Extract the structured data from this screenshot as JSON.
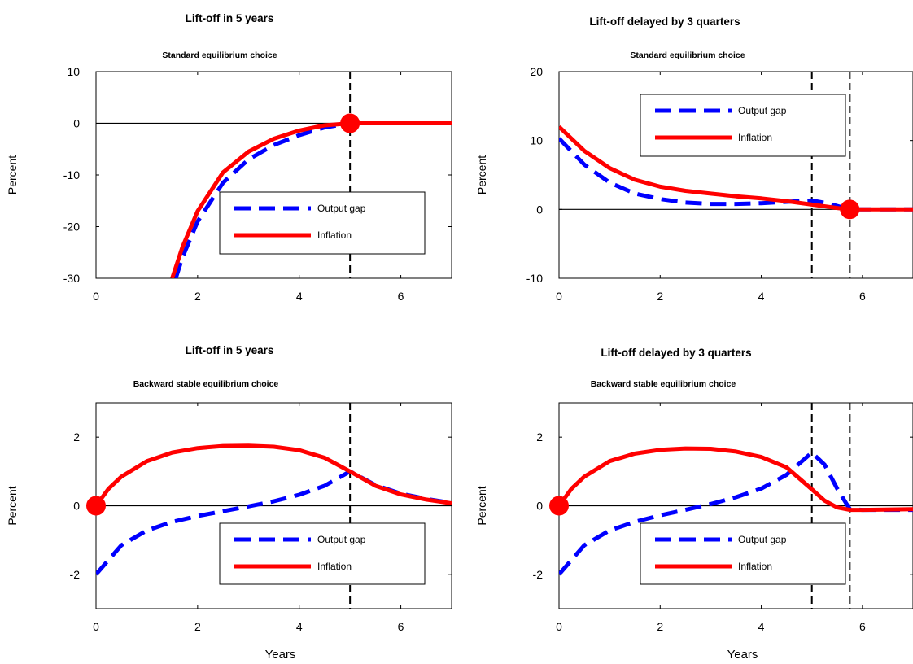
{
  "chart_data": [
    {
      "type": "line",
      "title": "Lift-off in 5 years",
      "subtitle": "Standard equilibrium choice",
      "xlabel": "",
      "ylabel": "Percent",
      "xlim": [
        0,
        7
      ],
      "ylim": [
        -30,
        10
      ],
      "xticks": [
        "0",
        "2",
        "4",
        "6"
      ],
      "yticks": [
        "10",
        "0",
        "-10",
        "-20",
        "-30"
      ],
      "vlines": [
        5
      ],
      "hline": 0,
      "markers": [
        {
          "x": 5,
          "y": 0
        }
      ],
      "legend_position": "bottom-right",
      "series": [
        {
          "name": "Output gap",
          "style": "dashed",
          "color": "#0000ff",
          "x": [
            1.57,
            1.7,
            2.0,
            2.5,
            3.0,
            3.5,
            4.0,
            4.5,
            5.0,
            5.5,
            6.0,
            7.0
          ],
          "y": [
            -30,
            -26,
            -19,
            -11.5,
            -7,
            -4.2,
            -2.3,
            -0.8,
            0,
            0,
            0,
            0
          ]
        },
        {
          "name": "Inflation",
          "style": "solid",
          "color": "#ff0000",
          "x": [
            1.5,
            1.7,
            2.0,
            2.5,
            3.0,
            3.5,
            4.0,
            4.5,
            5.0,
            5.5,
            6.0,
            7.0
          ],
          "y": [
            -30,
            -24,
            -17,
            -9.5,
            -5.5,
            -3.0,
            -1.4,
            -0.4,
            0,
            0,
            0,
            0
          ]
        }
      ]
    },
    {
      "type": "line",
      "title": "Lift-off delayed by 3 quarters",
      "subtitle": "Standard equilibrium choice",
      "xlabel": "",
      "ylabel": "Percent",
      "xlim": [
        0,
        7
      ],
      "ylim": [
        -10,
        20
      ],
      "xticks": [
        "0",
        "2",
        "4",
        "6"
      ],
      "yticks": [
        "20",
        "10",
        "0",
        "-10"
      ],
      "vlines": [
        5,
        5.75
      ],
      "hline": 0,
      "markers": [
        {
          "x": 5.75,
          "y": 0
        }
      ],
      "legend_position": "top-right",
      "series": [
        {
          "name": "Output gap",
          "style": "dashed",
          "color": "#0000ff",
          "x": [
            0,
            0.5,
            1.0,
            1.5,
            2.0,
            2.5,
            3.0,
            3.5,
            4.0,
            4.5,
            5.0,
            5.3,
            5.75,
            6.0,
            7.0
          ],
          "y": [
            10.3,
            6.5,
            3.9,
            2.3,
            1.5,
            1.0,
            0.8,
            0.8,
            0.9,
            1.1,
            1.3,
            0.9,
            0,
            0,
            0
          ]
        },
        {
          "name": "Inflation",
          "style": "solid",
          "color": "#ff0000",
          "x": [
            0,
            0.5,
            1.0,
            1.5,
            2.0,
            2.5,
            3.0,
            3.5,
            4.0,
            4.5,
            5.0,
            5.5,
            5.75,
            6.0,
            7.0
          ],
          "y": [
            12,
            8.5,
            6.0,
            4.3,
            3.3,
            2.7,
            2.3,
            1.9,
            1.6,
            1.2,
            0.7,
            0.2,
            0,
            0,
            0
          ]
        }
      ]
    },
    {
      "type": "line",
      "title": "Lift-off in 5 years",
      "subtitle": "Backward stable equilibrium choice",
      "xlabel": "Years",
      "ylabel": "Percent",
      "xlim": [
        0,
        7
      ],
      "ylim": [
        -3,
        3
      ],
      "xticks": [
        "0",
        "2",
        "4",
        "6"
      ],
      "yticks": [
        "2",
        "0",
        "-2"
      ],
      "vlines": [
        5
      ],
      "hline": 0,
      "markers": [
        {
          "x": 0,
          "y": 0
        }
      ],
      "legend_position": "bottom-right",
      "series": [
        {
          "name": "Output gap",
          "style": "dashed",
          "color": "#0000ff",
          "x": [
            0,
            0.5,
            1.0,
            1.5,
            2.0,
            2.5,
            3.0,
            3.5,
            4.0,
            4.5,
            5.0,
            5.5,
            6.0,
            6.5,
            7.0
          ],
          "y": [
            -2.0,
            -1.15,
            -0.72,
            -0.47,
            -0.3,
            -0.16,
            -0.02,
            0.13,
            0.32,
            0.58,
            1.0,
            0.6,
            0.35,
            0.2,
            0.08
          ]
        },
        {
          "name": "Inflation",
          "style": "solid",
          "color": "#ff0000",
          "x": [
            0,
            0.25,
            0.5,
            1.0,
            1.5,
            2.0,
            2.5,
            3.0,
            3.5,
            4.0,
            4.5,
            5.0,
            5.5,
            6.0,
            6.5,
            7.0
          ],
          "y": [
            0,
            0.5,
            0.85,
            1.3,
            1.55,
            1.68,
            1.74,
            1.75,
            1.72,
            1.62,
            1.4,
            1.0,
            0.58,
            0.33,
            0.18,
            0.07
          ]
        }
      ]
    },
    {
      "type": "line",
      "title": "Lift-off delayed by 3 quarters",
      "subtitle": "Backward stable equilibrium choice",
      "xlabel": "Years",
      "ylabel": "Percent",
      "xlim": [
        0,
        7
      ],
      "ylim": [
        -3,
        3
      ],
      "xticks": [
        "0",
        "2",
        "4",
        "6"
      ],
      "yticks": [
        "2",
        "0",
        "-2"
      ],
      "vlines": [
        5,
        5.75
      ],
      "hline": 0,
      "markers": [
        {
          "x": 0,
          "y": 0
        }
      ],
      "legend_position": "bottom-right",
      "series": [
        {
          "name": "Output gap",
          "style": "dashed",
          "color": "#0000ff",
          "x": [
            0,
            0.5,
            1.0,
            1.5,
            2.0,
            2.5,
            3.0,
            3.5,
            4.0,
            4.5,
            5.0,
            5.25,
            5.5,
            5.75,
            6.0,
            7.0
          ],
          "y": [
            -2.0,
            -1.15,
            -0.72,
            -0.47,
            -0.28,
            -0.12,
            0.05,
            0.25,
            0.5,
            0.9,
            1.55,
            1.2,
            0.5,
            -0.1,
            -0.12,
            -0.12
          ]
        },
        {
          "name": "Inflation",
          "style": "solid",
          "color": "#ff0000",
          "x": [
            0,
            0.25,
            0.5,
            1.0,
            1.5,
            2.0,
            2.5,
            3.0,
            3.5,
            4.0,
            4.5,
            5.0,
            5.25,
            5.5,
            5.75,
            6.0,
            7.0
          ],
          "y": [
            0,
            0.5,
            0.85,
            1.3,
            1.52,
            1.63,
            1.67,
            1.66,
            1.58,
            1.42,
            1.12,
            0.48,
            0.15,
            -0.05,
            -0.12,
            -0.12,
            -0.1
          ]
        }
      ]
    }
  ]
}
